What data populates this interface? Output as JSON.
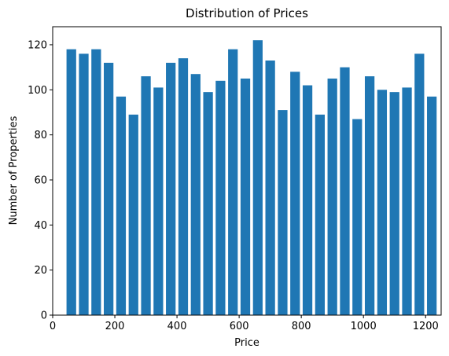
{
  "chart_data": {
    "type": "bar",
    "title": "Distribution of Prices",
    "xlabel": "Price",
    "ylabel": "Number of Properties",
    "xlim": [
      0,
      1250
    ],
    "ylim": [
      0,
      128
    ],
    "xticks": [
      0,
      200,
      400,
      600,
      800,
      1000,
      1200
    ],
    "yticks": [
      0,
      20,
      40,
      60,
      80,
      100,
      120
    ],
    "bar_width": 31,
    "grid": false,
    "bar_color": "#1f77b4",
    "x": [
      60,
      100,
      140,
      180,
      220,
      260,
      300,
      340,
      380,
      420,
      460,
      500,
      540,
      580,
      620,
      660,
      700,
      740,
      780,
      820,
      860,
      900,
      940,
      980,
      1020,
      1060,
      1100,
      1140,
      1180,
      1220
    ],
    "values": [
      118,
      116,
      118,
      112,
      97,
      89,
      106,
      101,
      112,
      114,
      107,
      99,
      104,
      118,
      105,
      122,
      113,
      91,
      108,
      102,
      89,
      105,
      110,
      87,
      106,
      100,
      99,
      101,
      116,
      97
    ]
  }
}
